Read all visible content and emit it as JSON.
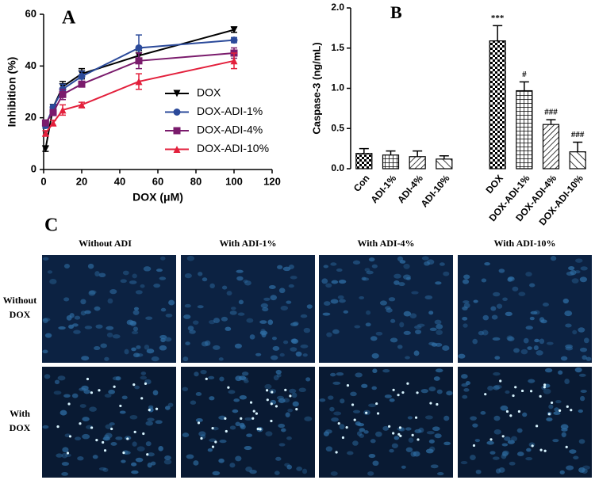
{
  "chart_data": [
    {
      "type": "line",
      "panel_label": "A",
      "xlabel": "DOX (μM)",
      "ylabel": "Inhibition (%)",
      "x": [
        1,
        5,
        10,
        20,
        50,
        100
      ],
      "series": [
        {
          "name": "DOX",
          "color": "#000000",
          "marker": "down-triangle",
          "values": [
            8,
            24,
            32,
            37,
            44,
            54
          ],
          "errors": [
            1,
            1,
            2,
            2,
            2,
            1
          ]
        },
        {
          "name": "DOX-ADI-1%",
          "color": "#2b4a9a",
          "marker": "circle",
          "values": [
            17,
            24,
            31,
            36,
            47,
            50
          ],
          "errors": [
            1,
            1,
            2,
            2,
            5,
            1
          ]
        },
        {
          "name": "DOX-ADI-4%",
          "color": "#7a1b6c",
          "marker": "square",
          "values": [
            18,
            22,
            29,
            33,
            42,
            45
          ],
          "errors": [
            1,
            1,
            2,
            1,
            3,
            2
          ]
        },
        {
          "name": "DOX-ADI-10%",
          "color": "#e3203c",
          "marker": "up-triangle",
          "values": [
            14,
            18,
            23,
            25,
            34,
            42
          ],
          "errors": [
            1,
            1,
            2,
            1,
            3,
            3
          ]
        }
      ],
      "xlim": [
        0,
        120
      ],
      "xticks": [
        0,
        20,
        40,
        60,
        80,
        100,
        120
      ],
      "ylim": [
        0,
        60
      ],
      "yticks": [
        0,
        20,
        40,
        60
      ],
      "legend": "lower right"
    },
    {
      "type": "bar",
      "panel_label": "B",
      "ylabel": "Caspase-3 (ng/mL)",
      "categories": [
        "Con",
        "ADI-1%",
        "ADI-4%",
        "ADI-10%",
        null,
        "DOX",
        "DOX-ADI-1%",
        "DOX-ADI-4%",
        "DOX-ADI-10%"
      ],
      "values": [
        0.19,
        0.17,
        0.15,
        0.12,
        null,
        1.59,
        0.97,
        0.55,
        0.21
      ],
      "errors": [
        0.06,
        0.05,
        0.07,
        0.04,
        null,
        0.19,
        0.11,
        0.06,
        0.12
      ],
      "annotations": [
        null,
        null,
        null,
        null,
        null,
        "***",
        "#",
        "###",
        "###"
      ],
      "color": "#000000",
      "ylim": [
        0,
        2
      ],
      "yticks": [
        {
          "value": 0,
          "label": "0.0"
        },
        0.5,
        {
          "value": 1,
          "label": "1.0"
        },
        1.5,
        {
          "value": 2,
          "label": "2.0"
        }
      ]
    }
  ],
  "panel_c": {
    "label": "C",
    "columns": [
      "Without ADI",
      "With ADI-1%",
      "With ADI-4%",
      "With ADI-10%"
    ],
    "rows": [
      "Without DOX",
      "With DOX"
    ]
  }
}
